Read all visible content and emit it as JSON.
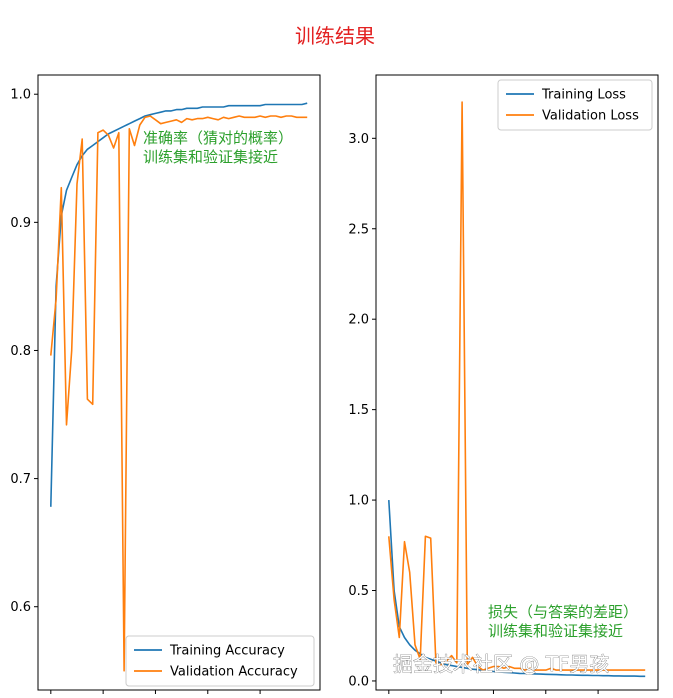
{
  "suptitle": "训练结果",
  "watermark": "掘金技术社区 @ TF男孩",
  "colors": {
    "training": "#1f77b4",
    "validation": "#ff7f0e",
    "annotation": "#2ca02c",
    "title": "#e32222"
  },
  "chart_data": [
    {
      "type": "line",
      "annotation": [
        "准确率（猜对的概率）",
        "训练集和验证集接近"
      ],
      "ylim": [
        0.535,
        1.015
      ],
      "yticks": [
        "0.6",
        "0.7",
        "0.8",
        "0.9",
        "1.0"
      ],
      "legend": "bottom-right",
      "x": [
        0,
        1,
        2,
        3,
        4,
        5,
        6,
        7,
        8,
        9,
        10,
        11,
        12,
        13,
        14,
        15,
        16,
        17,
        18,
        19,
        20,
        21,
        22,
        23,
        24,
        25,
        26,
        27,
        28,
        29,
        30,
        31,
        32,
        33,
        34,
        35,
        36,
        37,
        38,
        39,
        40,
        41,
        42,
        43,
        44,
        45,
        46,
        47,
        48,
        49
      ],
      "series": [
        {
          "name": "Training Accuracy",
          "values": [
            0.678,
            0.85,
            0.905,
            0.925,
            0.935,
            0.945,
            0.952,
            0.957,
            0.96,
            0.963,
            0.966,
            0.969,
            0.971,
            0.973,
            0.975,
            0.977,
            0.979,
            0.981,
            0.983,
            0.984,
            0.985,
            0.986,
            0.987,
            0.987,
            0.988,
            0.988,
            0.989,
            0.989,
            0.989,
            0.99,
            0.99,
            0.99,
            0.99,
            0.99,
            0.991,
            0.991,
            0.991,
            0.991,
            0.991,
            0.991,
            0.991,
            0.992,
            0.992,
            0.992,
            0.992,
            0.992,
            0.992,
            0.992,
            0.992,
            0.993
          ]
        },
        {
          "name": "Validation Accuracy",
          "values": [
            0.796,
            0.84,
            0.927,
            0.742,
            0.8,
            0.93,
            0.965,
            0.762,
            0.758,
            0.97,
            0.972,
            0.968,
            0.958,
            0.97,
            0.55,
            0.973,
            0.96,
            0.976,
            0.982,
            0.983,
            0.98,
            0.977,
            0.978,
            0.979,
            0.98,
            0.978,
            0.981,
            0.98,
            0.981,
            0.981,
            0.982,
            0.981,
            0.98,
            0.982,
            0.981,
            0.982,
            0.983,
            0.982,
            0.982,
            0.982,
            0.983,
            0.982,
            0.983,
            0.983,
            0.982,
            0.983,
            0.983,
            0.982,
            0.982,
            0.982
          ]
        }
      ]
    },
    {
      "type": "line",
      "annotation": [
        "损失（与答案的差距）",
        "训练集和验证集接近"
      ],
      "ylim": [
        -0.05,
        3.35
      ],
      "yticks": [
        "0.0",
        "0.5",
        "1.0",
        "1.5",
        "2.0",
        "2.5",
        "3.0"
      ],
      "legend": "top-right",
      "x": [
        0,
        1,
        2,
        3,
        4,
        5,
        6,
        7,
        8,
        9,
        10,
        11,
        12,
        13,
        14,
        15,
        16,
        17,
        18,
        19,
        20,
        21,
        22,
        23,
        24,
        25,
        26,
        27,
        28,
        29,
        30,
        31,
        32,
        33,
        34,
        35,
        36,
        37,
        38,
        39,
        40,
        41,
        42,
        43,
        44,
        45,
        46,
        47,
        48,
        49
      ],
      "series": [
        {
          "name": "Training Loss",
          "values": [
            1.0,
            0.5,
            0.3,
            0.24,
            0.2,
            0.17,
            0.15,
            0.13,
            0.12,
            0.11,
            0.1,
            0.09,
            0.085,
            0.08,
            0.075,
            0.07,
            0.065,
            0.062,
            0.058,
            0.055,
            0.052,
            0.05,
            0.048,
            0.046,
            0.044,
            0.042,
            0.041,
            0.04,
            0.039,
            0.038,
            0.037,
            0.036,
            0.035,
            0.034,
            0.033,
            0.033,
            0.032,
            0.031,
            0.031,
            0.03,
            0.03,
            0.029,
            0.029,
            0.028,
            0.028,
            0.027,
            0.027,
            0.027,
            0.026,
            0.026
          ]
        },
        {
          "name": "Validation Loss",
          "values": [
            0.8,
            0.45,
            0.24,
            0.77,
            0.6,
            0.2,
            0.12,
            0.8,
            0.79,
            0.1,
            0.09,
            0.11,
            0.14,
            0.1,
            3.2,
            0.09,
            0.13,
            0.08,
            0.06,
            0.07,
            0.08,
            0.08,
            0.07,
            0.08,
            0.07,
            0.07,
            0.06,
            0.07,
            0.06,
            0.06,
            0.06,
            0.07,
            0.06,
            0.06,
            0.06,
            0.06,
            0.06,
            0.06,
            0.06,
            0.06,
            0.06,
            0.06,
            0.06,
            0.06,
            0.06,
            0.06,
            0.06,
            0.06,
            0.06,
            0.06
          ]
        }
      ]
    }
  ]
}
